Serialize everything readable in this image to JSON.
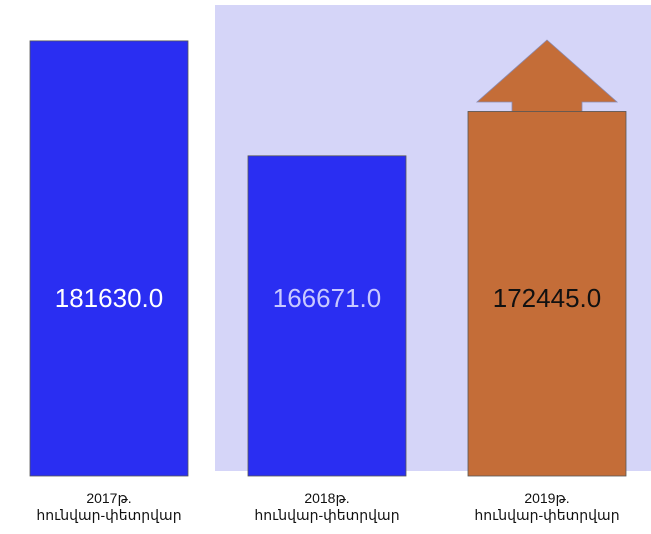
{
  "chart_data": {
    "type": "bar",
    "categories": [
      "2017թ.\nհունվար-փետրվար",
      "2018թ.\nհունվար-փետրվար",
      "2019թ.\nհունվար-փետրվար"
    ],
    "values": [
      181630,
      166671,
      172445
    ],
    "value_labels": [
      "181630.0",
      "166671.0",
      "172445.0"
    ],
    "colors": [
      "#2a2ef2",
      "#2a2ef2",
      "#c46d38"
    ],
    "label_colors": [
      "#ffffff",
      "#c9c9ff",
      "#111111"
    ],
    "ylim": [
      125000,
      185000
    ]
  }
}
